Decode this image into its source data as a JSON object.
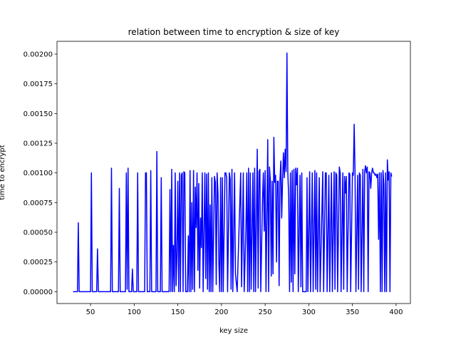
{
  "chart_data": {
    "type": "line",
    "title": "relation between time to encryption & size of key",
    "xlabel": "key size",
    "ylabel": "time to encrypt",
    "color": "#0000ff",
    "x": [
      30,
      35,
      36,
      37,
      50,
      51,
      52,
      57,
      58,
      59,
      73,
      74,
      75,
      82,
      83,
      84,
      90,
      91,
      92,
      93,
      94,
      97,
      98,
      99,
      103,
      104,
      105,
      112,
      113,
      114,
      115,
      118,
      119,
      120,
      125,
      126,
      127,
      130,
      131,
      132,
      140,
      141,
      142,
      143,
      144,
      145,
      146,
      147,
      148,
      149,
      150,
      151,
      152,
      153,
      154,
      155,
      156,
      157,
      158,
      159,
      161,
      162,
      163,
      164,
      165,
      166,
      167,
      168,
      169,
      170,
      171,
      172,
      173,
      174,
      175,
      176,
      177,
      178,
      179,
      181,
      182,
      183,
      184,
      185,
      186,
      187,
      188,
      189,
      190,
      192,
      193,
      194,
      195,
      196,
      197,
      198,
      199,
      200,
      201,
      202,
      204,
      205,
      206,
      207,
      209,
      210,
      211,
      212,
      213,
      215,
      216,
      218,
      222,
      223,
      225,
      226,
      228,
      229,
      230,
      231,
      232,
      233,
      234,
      236,
      237,
      238,
      239,
      241,
      242,
      243,
      244,
      245,
      247,
      248,
      249,
      250,
      251,
      253,
      254,
      255,
      256,
      257,
      258,
      259,
      260,
      261,
      262,
      263,
      264,
      265,
      266,
      267,
      268,
      269,
      270,
      271,
      272,
      273,
      274,
      275,
      276,
      277,
      278,
      279,
      280,
      281,
      282,
      283,
      284,
      285,
      286,
      287,
      288,
      290,
      291,
      292,
      293,
      297,
      298,
      299,
      301,
      302,
      304,
      305,
      307,
      308,
      309,
      310,
      312,
      313,
      316,
      317,
      319,
      320,
      321,
      323,
      324,
      326,
      327,
      329,
      330,
      331,
      332,
      333,
      335,
      336,
      337,
      339,
      340,
      341,
      342,
      343,
      344,
      346,
      347,
      348,
      350,
      351,
      352,
      353,
      354,
      356,
      357,
      358,
      359,
      360,
      362,
      363,
      364,
      365,
      366,
      367,
      368,
      369,
      370,
      371,
      372,
      373,
      374,
      375,
      376,
      377,
      378,
      379,
      380,
      381,
      382,
      383,
      384,
      385,
      386,
      387,
      388,
      389,
      390,
      391,
      392,
      393,
      394,
      395
    ],
    "values": [
      0,
      0,
      0.00058,
      0,
      0,
      0.001,
      0,
      0,
      0.00036,
      0,
      0,
      0.00104,
      0,
      0,
      0.00087,
      0,
      0,
      0.001,
      2e-05,
      0.00104,
      0,
      0,
      0.00019,
      0,
      0,
      0.001,
      0,
      0,
      0.001,
      0.001,
      0,
      0,
      0.00102,
      0,
      0,
      0.00118,
      0,
      0,
      0.00096,
      0,
      0,
      0.00086,
      0,
      0.00103,
      0,
      0.00039,
      0,
      0.001,
      5e-05,
      0.00031,
      0.00093,
      0,
      0.001,
      0,
      0.00098,
      0.001,
      0,
      0.00101,
      0.001,
      0,
      0,
      0.00047,
      0,
      0.00102,
      0,
      0.00075,
      2e-05,
      0.00102,
      0,
      0.00088,
      0.00054,
      0.001,
      0.00018,
      0.00091,
      3e-05,
      0.00062,
      0.00037,
      0.001,
      0,
      0.001,
      0.00011,
      0.00099,
      2e-05,
      0.001,
      0,
      0.00073,
      0,
      0.00096,
      0,
      0.00097,
      0.00092,
      6e-05,
      0.001,
      0.00083,
      0.00024,
      0,
      0.00096,
      0,
      0.00096,
      0,
      0.001,
      0.001,
      0.00096,
      0,
      0.001,
      0.00095,
      2e-05,
      0.00103,
      0,
      0.001,
      0.00015,
      0,
      0.001,
      4e-05,
      0.001,
      0,
      0.00053,
      0.001,
      0,
      0.00104,
      0,
      0.001,
      2e-05,
      0.001,
      0,
      0.00104,
      0,
      0.0012,
      3e-05,
      0.00101,
      0.00103,
      0,
      0.00078,
      0.001,
      0.00051,
      0.00102,
      0,
      0.00128,
      0,
      0.00105,
      0.00093,
      0.00013,
      0.00093,
      0.00015,
      0.0013,
      0.00092,
      0.00098,
      0.00025,
      0.00093,
      0.00093,
      5e-05,
      0.00094,
      0.0011,
      0.00062,
      0.00095,
      0.00117,
      0.00096,
      0.0012,
      0.00101,
      0.00201,
      0.001,
      0.0008,
      0,
      0.001,
      8e-05,
      0.00102,
      0,
      0.00103,
      0.00015,
      0.00104,
      0.0009,
      0.00104,
      0,
      0.00098,
      4e-05,
      0.001,
      0,
      0,
      0.00096,
      0,
      0.00101,
      0,
      0.001,
      0,
      0.00102,
      2e-05,
      0.001,
      0,
      0.00096,
      0,
      0.00101,
      0,
      0.001,
      0.001,
      0,
      0.00098,
      0,
      0.001,
      0,
      0.00101,
      2e-05,
      0.001,
      0.00098,
      0,
      0.00105,
      0.001,
      0,
      0.001,
      2e-05,
      0.00097,
      0.00083,
      0.00097,
      0,
      0.001,
      0.00099,
      0,
      0.001,
      0.00098,
      0.00141,
      0.001,
      0,
      0.00098,
      2e-05,
      0.001,
      0.00098,
      0,
      0.00103,
      0,
      0.00101,
      0.00106,
      0.001,
      0.00105,
      0,
      0.00101,
      0.001,
      0.00087,
      0.001,
      0.00104,
      0.001,
      0.001,
      0.00098,
      0.00099,
      0.00096,
      0.00099,
      0.00044,
      0.001,
      0,
      0.001,
      0,
      0.00102,
      0.0009,
      0,
      0.001,
      0,
      0.00111,
      0.00094,
      0.00101,
      0,
      0.001,
      0.00097
    ],
    "xlim": [
      11.6,
      416.4
    ],
    "ylim": [
      -0.0001,
      0.002108
    ],
    "xticks": [
      50,
      100,
      150,
      200,
      250,
      300,
      350,
      400
    ],
    "yticks": [
      {
        "value": 0,
        "label": "0.00000"
      },
      {
        "value": 0.00025,
        "label": "0.00025"
      },
      {
        "value": 0.0005,
        "label": "0.00050"
      },
      {
        "value": 0.00075,
        "label": "0.00075"
      },
      {
        "value": 0.001,
        "label": "0.00100"
      },
      {
        "value": 0.00125,
        "label": "0.00125"
      },
      {
        "value": 0.0015,
        "label": "0.00150"
      },
      {
        "value": 0.00175,
        "label": "0.00175"
      },
      {
        "value": 0.002,
        "label": "0.00200"
      }
    ]
  }
}
